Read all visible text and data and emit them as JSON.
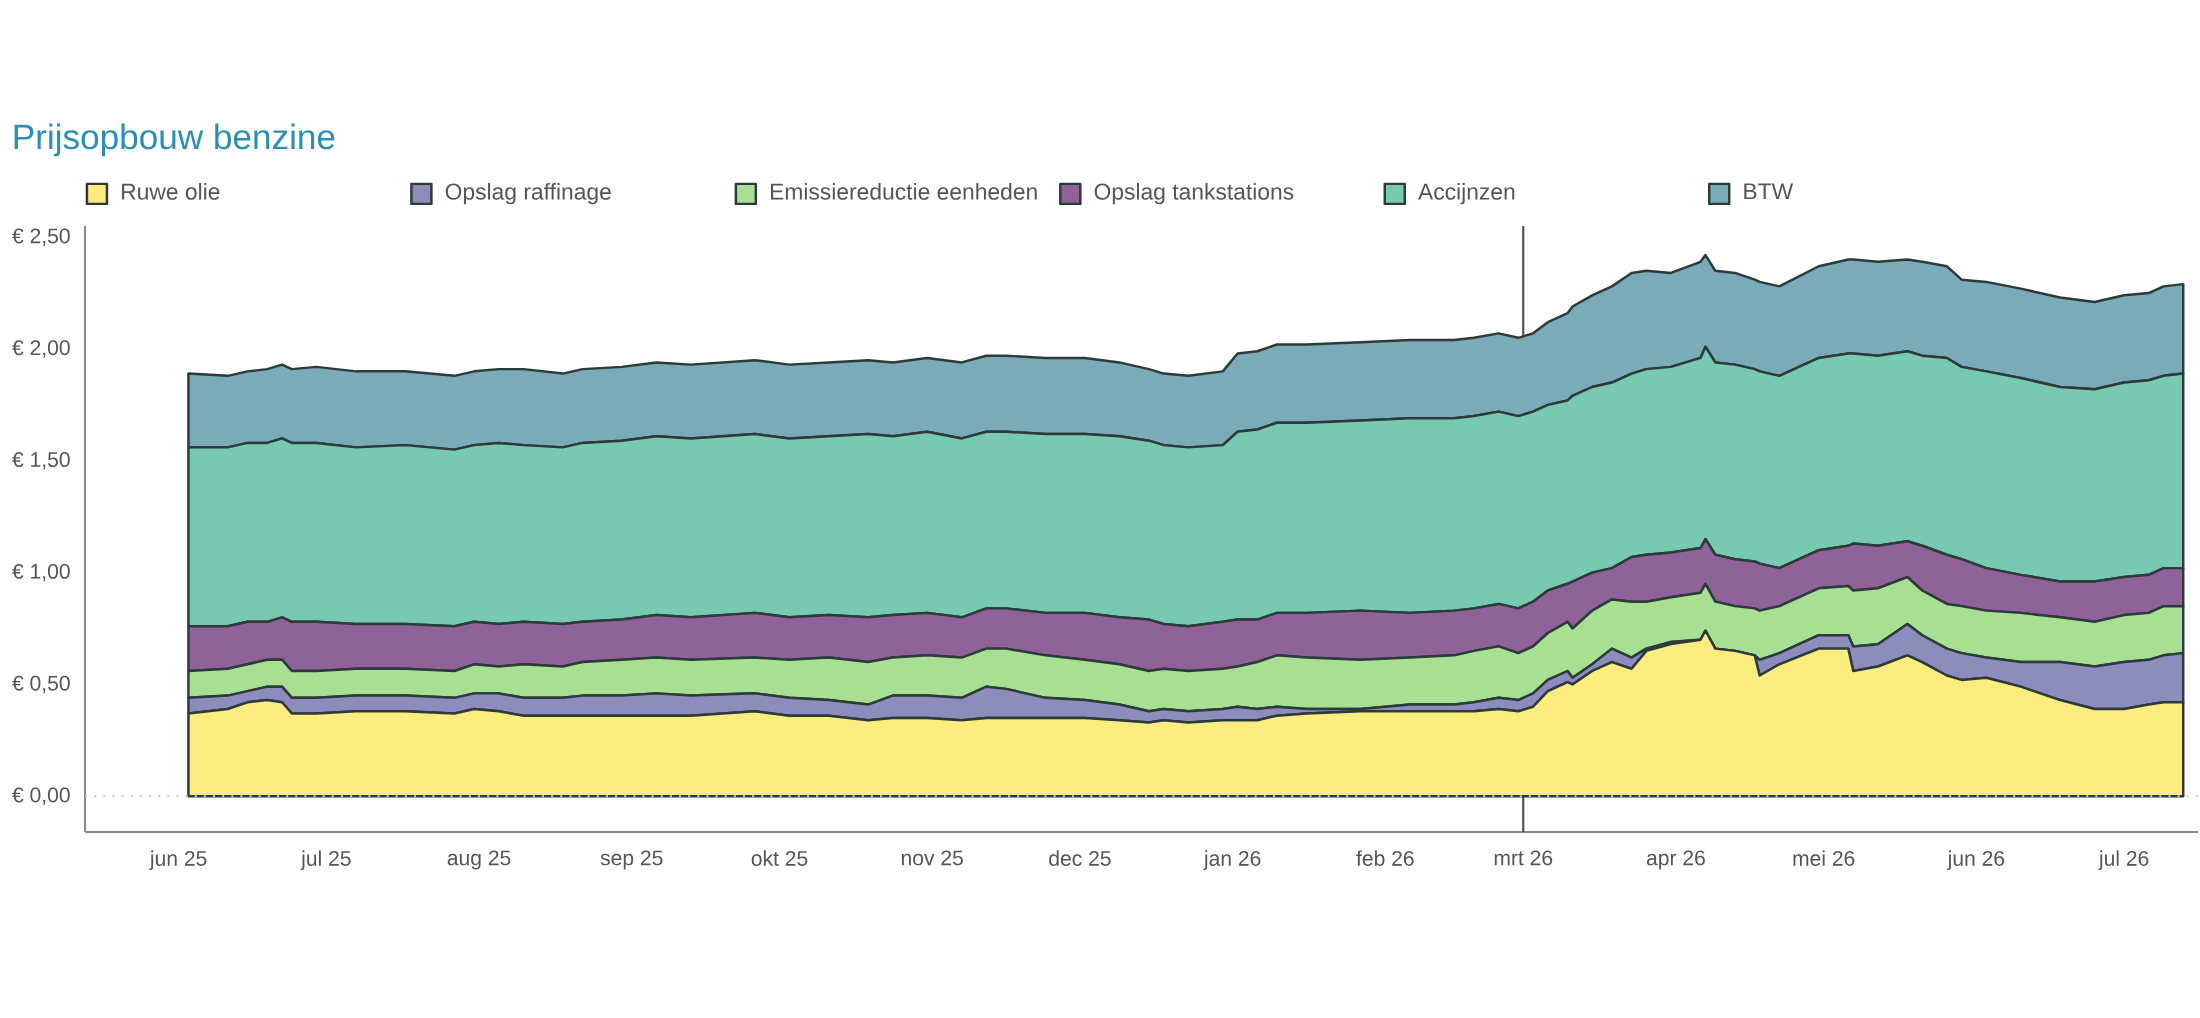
{
  "chart_data": {
    "type": "area",
    "title": "Prijsopbouw benzine",
    "stacked": true,
    "legend": "top",
    "x": [
      "2025-06-03",
      "2025-06-11",
      "2025-06-15",
      "2025-06-19",
      "2025-06-22",
      "2025-06-24",
      "2025-06-29",
      "2025-07-07",
      "2025-07-17",
      "2025-07-27",
      "2025-07-31",
      "2025-08-05",
      "2025-08-10",
      "2025-08-18",
      "2025-08-22",
      "2025-08-30",
      "2025-09-06",
      "2025-09-13",
      "2025-09-26",
      "2025-10-03",
      "2025-10-11",
      "2025-10-19",
      "2025-10-24",
      "2025-10-31",
      "2025-11-07",
      "2025-11-12",
      "2025-11-16",
      "2025-11-24",
      "2025-12-02",
      "2025-12-09",
      "2025-12-15",
      "2025-12-18",
      "2025-12-23",
      "2025-12-30",
      "2026-01-02",
      "2026-01-06",
      "2026-01-10",
      "2026-01-16",
      "2026-01-27",
      "2026-02-06",
      "2026-02-15",
      "2026-02-19",
      "2026-02-24",
      "2026-02-28",
      "2026-03-03",
      "2026-03-06",
      "2026-03-10",
      "2026-03-11",
      "2026-03-15",
      "2026-03-19",
      "2026-03-23",
      "2026-03-26",
      "2026-03-31",
      "2026-04-06",
      "2026-04-07",
      "2026-04-09",
      "2026-04-13",
      "2026-04-17",
      "2026-04-18",
      "2026-04-22",
      "2026-04-30",
      "2026-05-06",
      "2026-05-07",
      "2026-05-12",
      "2026-05-18",
      "2026-05-21",
      "2026-05-26",
      "2026-05-29",
      "2026-06-03",
      "2026-06-10",
      "2026-06-18",
      "2026-06-25",
      "2026-07-01",
      "2026-07-06",
      "2026-07-09",
      "2026-07-13"
    ],
    "xlim": [
      "2025-05-13",
      "2026-07-16"
    ],
    "xticks": [
      {
        "value": "2025-06-01",
        "label": "jun 25"
      },
      {
        "value": "2025-07-01",
        "label": "jul 25"
      },
      {
        "value": "2025-08-01",
        "label": "aug 25"
      },
      {
        "value": "2025-09-01",
        "label": "sep 25"
      },
      {
        "value": "2025-10-01",
        "label": "okt 25"
      },
      {
        "value": "2025-11-01",
        "label": "nov 25"
      },
      {
        "value": "2025-12-01",
        "label": "dec 25"
      },
      {
        "value": "2026-01-01",
        "label": "jan 26"
      },
      {
        "value": "2026-02-01",
        "label": "feb 26"
      },
      {
        "value": "2026-03-01",
        "label": "mrt 26"
      },
      {
        "value": "2026-04-01",
        "label": "apr 26"
      },
      {
        "value": "2026-05-01",
        "label": "mei 26"
      },
      {
        "value": "2026-06-01",
        "label": "jun 26"
      },
      {
        "value": "2026-07-01",
        "label": "jul 26"
      }
    ],
    "ylim": [
      -0.16,
      2.55
    ],
    "yticks": [
      {
        "value": 0,
        "label": "€ 0,00"
      },
      {
        "value": 0.5,
        "label": "€ 0,50"
      },
      {
        "value": 1,
        "label": "€ 1,00"
      },
      {
        "value": 1.5,
        "label": "€ 1,50"
      },
      {
        "value": 2,
        "label": "€ 2,00"
      },
      {
        "value": 2.5,
        "label": "€ 2,50"
      }
    ],
    "ref_lines": [
      {
        "axis": "y",
        "value": 0,
        "color": "#c8c8c8",
        "line_style": "dotted"
      },
      {
        "axis": "x",
        "value": "2026-03-01",
        "color": "#4d4d4d",
        "line_style": "solid"
      }
    ],
    "series": [
      {
        "name": "Ruwe olie",
        "color": "#fdec7e",
        "values": [
          0.37,
          0.39,
          0.42,
          0.43,
          0.42,
          0.37,
          0.37,
          0.38,
          0.38,
          0.37,
          0.39,
          0.38,
          0.36,
          0.36,
          0.36,
          0.36,
          0.36,
          0.36,
          0.38,
          0.36,
          0.36,
          0.34,
          0.35,
          0.35,
          0.34,
          0.35,
          0.35,
          0.35,
          0.35,
          0.34,
          0.33,
          0.34,
          0.33,
          0.34,
          0.34,
          0.34,
          0.36,
          0.37,
          0.38,
          0.38,
          0.38,
          0.38,
          0.39,
          0.38,
          0.4,
          0.47,
          0.51,
          0.5,
          0.56,
          0.6,
          0.57,
          0.65,
          0.68,
          0.7,
          0.74,
          0.66,
          0.65,
          0.63,
          0.54,
          0.59,
          0.66,
          0.66,
          0.56,
          0.58,
          0.63,
          0.6,
          0.54,
          0.52,
          0.53,
          0.49,
          0.43,
          0.39,
          0.39,
          0.41,
          0.42,
          0.42
        ]
      },
      {
        "name": "Opslag raffinage",
        "color": "#8c8dbd",
        "values": [
          0.07,
          0.06,
          0.05,
          0.06,
          0.07,
          0.07,
          0.07,
          0.07,
          0.07,
          0.07,
          0.07,
          0.08,
          0.08,
          0.08,
          0.09,
          0.09,
          0.1,
          0.09,
          0.08,
          0.08,
          0.07,
          0.07,
          0.1,
          0.1,
          0.1,
          0.14,
          0.13,
          0.09,
          0.08,
          0.07,
          0.05,
          0.05,
          0.05,
          0.05,
          0.06,
          0.05,
          0.04,
          0.02,
          0.01,
          0.03,
          0.03,
          0.04,
          0.05,
          0.05,
          0.06,
          0.05,
          0.05,
          0.03,
          0.03,
          0.06,
          0.05,
          0.01,
          0.01,
          0,
          0,
          0,
          0,
          0,
          0.07,
          0.05,
          0.06,
          0.06,
          0.11,
          0.1,
          0.14,
          0.12,
          0.12,
          0.12,
          0.09,
          0.11,
          0.17,
          0.19,
          0.21,
          0.2,
          0.21,
          0.22
        ]
      },
      {
        "name": "Emissiereductie eenheden",
        "color": "#a8e093",
        "values": [
          0.12,
          0.12,
          0.12,
          0.12,
          0.12,
          0.12,
          0.12,
          0.12,
          0.12,
          0.12,
          0.13,
          0.12,
          0.15,
          0.14,
          0.15,
          0.16,
          0.16,
          0.16,
          0.16,
          0.17,
          0.19,
          0.19,
          0.17,
          0.18,
          0.18,
          0.17,
          0.18,
          0.19,
          0.18,
          0.18,
          0.18,
          0.18,
          0.18,
          0.18,
          0.18,
          0.21,
          0.23,
          0.23,
          0.22,
          0.21,
          0.22,
          0.23,
          0.23,
          0.21,
          0.21,
          0.21,
          0.22,
          0.22,
          0.24,
          0.22,
          0.25,
          0.21,
          0.2,
          0.21,
          0.21,
          0.21,
          0.2,
          0.21,
          0.22,
          0.21,
          0.21,
          0.22,
          0.25,
          0.25,
          0.21,
          0.2,
          0.2,
          0.21,
          0.21,
          0.22,
          0.2,
          0.2,
          0.21,
          0.21,
          0.22,
          0.21
        ]
      },
      {
        "name": "Opslag tankstations",
        "color": "#8f6399",
        "values": [
          0.2,
          0.19,
          0.19,
          0.17,
          0.19,
          0.22,
          0.22,
          0.2,
          0.2,
          0.2,
          0.19,
          0.19,
          0.19,
          0.19,
          0.18,
          0.18,
          0.19,
          0.19,
          0.2,
          0.19,
          0.19,
          0.2,
          0.19,
          0.19,
          0.18,
          0.18,
          0.18,
          0.19,
          0.21,
          0.21,
          0.23,
          0.2,
          0.2,
          0.21,
          0.21,
          0.19,
          0.19,
          0.2,
          0.22,
          0.2,
          0.2,
          0.19,
          0.19,
          0.2,
          0.2,
          0.19,
          0.17,
          0.21,
          0.17,
          0.14,
          0.2,
          0.21,
          0.2,
          0.2,
          0.2,
          0.21,
          0.21,
          0.21,
          0.21,
          0.17,
          0.17,
          0.18,
          0.21,
          0.19,
          0.16,
          0.2,
          0.22,
          0.21,
          0.19,
          0.17,
          0.16,
          0.18,
          0.17,
          0.17,
          0.17,
          0.17
        ]
      },
      {
        "name": "Accijnzen",
        "color": "#77c9b2",
        "values": [
          0.8,
          0.8,
          0.8,
          0.8,
          0.8,
          0.8,
          0.8,
          0.79,
          0.8,
          0.79,
          0.79,
          0.81,
          0.79,
          0.79,
          0.8,
          0.8,
          0.8,
          0.8,
          0.8,
          0.8,
          0.8,
          0.82,
          0.8,
          0.81,
          0.8,
          0.79,
          0.79,
          0.8,
          0.8,
          0.81,
          0.8,
          0.8,
          0.8,
          0.79,
          0.84,
          0.85,
          0.85,
          0.85,
          0.85,
          0.87,
          0.86,
          0.86,
          0.86,
          0.86,
          0.85,
          0.83,
          0.82,
          0.83,
          0.83,
          0.83,
          0.82,
          0.83,
          0.83,
          0.85,
          0.86,
          0.86,
          0.87,
          0.86,
          0.86,
          0.86,
          0.86,
          0.86,
          0.85,
          0.85,
          0.85,
          0.85,
          0.88,
          0.86,
          0.88,
          0.88,
          0.87,
          0.86,
          0.87,
          0.87,
          0.86,
          0.87
        ]
      },
      {
        "name": "BTW",
        "color": "#7aabb8",
        "values": [
          0.33,
          0.32,
          0.32,
          0.33,
          0.33,
          0.33,
          0.34,
          0.34,
          0.33,
          0.33,
          0.33,
          0.33,
          0.34,
          0.33,
          0.33,
          0.33,
          0.33,
          0.33,
          0.33,
          0.33,
          0.33,
          0.33,
          0.33,
          0.33,
          0.34,
          0.34,
          0.34,
          0.34,
          0.34,
          0.33,
          0.32,
          0.32,
          0.32,
          0.33,
          0.35,
          0.35,
          0.35,
          0.35,
          0.35,
          0.35,
          0.35,
          0.35,
          0.35,
          0.35,
          0.35,
          0.37,
          0.39,
          0.4,
          0.41,
          0.43,
          0.45,
          0.44,
          0.42,
          0.43,
          0.41,
          0.41,
          0.41,
          0.4,
          0.4,
          0.4,
          0.41,
          0.42,
          0.42,
          0.42,
          0.41,
          0.42,
          0.41,
          0.39,
          0.4,
          0.4,
          0.4,
          0.39,
          0.39,
          0.39,
          0.4,
          0.4
        ]
      }
    ]
  }
}
